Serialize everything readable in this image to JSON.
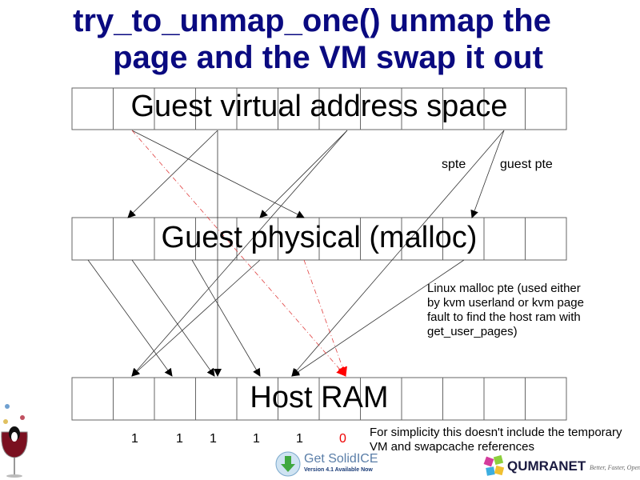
{
  "title": {
    "line1": "try_to_unmap_one() unmap the",
    "line2": "page and the VM swap it out"
  },
  "rows": {
    "virtual": "Guest virtual address space",
    "physical": "Guest physical (malloc)",
    "host": "Host RAM"
  },
  "labels": {
    "spte": "spte",
    "guest_pte": "guest pte"
  },
  "notes": {
    "malloc": "Linux malloc pte (used either by kvm userland or kvm page fault to find the host ram with get_user_pages)",
    "simplicity": "For simplicity this doesn't include the temporary VM and swapcache references"
  },
  "counts": [
    "1",
    "1",
    "1",
    "1",
    "1",
    "0"
  ],
  "colors": {
    "title": "#0a0a80",
    "highlight": "#ff0000"
  },
  "logos": {
    "solidice_main": "Get SolidICE",
    "solidice_sub": "Version 4.1 Available Now",
    "qumranet": "QUMRANET",
    "qumranet_tag": "Better, Faster, Open"
  }
}
